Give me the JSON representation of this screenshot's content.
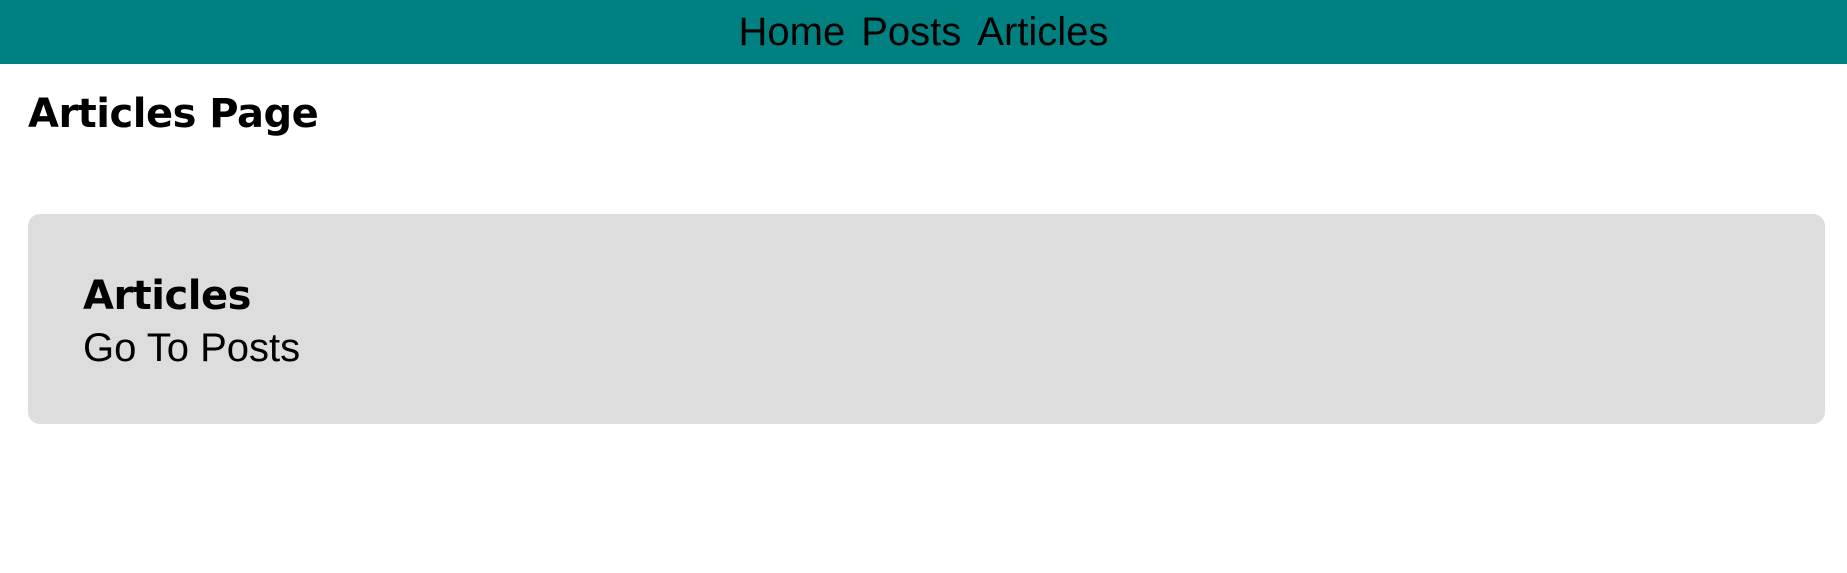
{
  "nav": {
    "links": [
      {
        "label": "Home"
      },
      {
        "label": "Posts"
      },
      {
        "label": "Articles"
      }
    ]
  },
  "page": {
    "title": "Articles Page"
  },
  "card": {
    "title": "Articles",
    "link_label": "Go To Posts"
  },
  "colors": {
    "navbar_background": "#008080",
    "card_background": "#dddddd",
    "text": "#000000"
  }
}
